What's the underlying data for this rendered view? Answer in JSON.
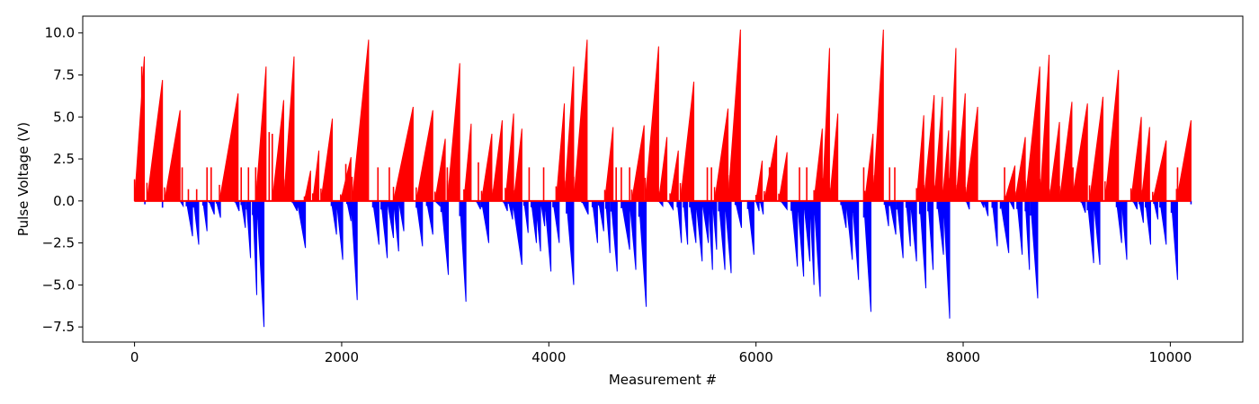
{
  "chart_data": {
    "type": "bar",
    "title": "",
    "xlabel": "Measurement #",
    "ylabel": "Pulse Voltage (V)",
    "xlim": [
      -500,
      10700
    ],
    "ylim": [
      -8.4,
      11.0
    ],
    "x_ticks": [
      0,
      2000,
      4000,
      6000,
      8000,
      10000
    ],
    "x_tick_labels": [
      "0",
      "2000",
      "4000",
      "6000",
      "8000",
      "10000"
    ],
    "y_ticks": [
      -7.5,
      -5.0,
      -2.5,
      0.0,
      2.5,
      5.0,
      7.5,
      10.0
    ],
    "y_tick_labels": [
      "−7.5",
      "−5.0",
      "−2.5",
      "0.0",
      "2.5",
      "5.0",
      "7.5",
      "10.0"
    ],
    "grid": false,
    "series": [
      {
        "color": "#ff0000",
        "description": "positive pulses (sawtooth ramps from 0 to peak)",
        "ramps": [
          [
            0,
            95,
            8.6
          ],
          [
            120,
            270,
            7.2
          ],
          [
            290,
            440,
            5.4
          ],
          [
            820,
            1000,
            6.4
          ],
          [
            1170,
            1270,
            8.0
          ],
          [
            1330,
            1440,
            6.0
          ],
          [
            1440,
            1540,
            8.6
          ],
          [
            1640,
            1700,
            1.8
          ],
          [
            1720,
            1780,
            3.0
          ],
          [
            1800,
            1910,
            4.9
          ],
          [
            1990,
            2090,
            2.6
          ],
          [
            2100,
            2260,
            9.6
          ],
          [
            2500,
            2690,
            5.6
          ],
          [
            2720,
            2880,
            5.4
          ],
          [
            2900,
            3000,
            3.7
          ],
          [
            3020,
            3140,
            8.2
          ],
          [
            3180,
            3250,
            4.6
          ],
          [
            3350,
            3450,
            4.0
          ],
          [
            3450,
            3550,
            4.8
          ],
          [
            3580,
            3660,
            5.2
          ],
          [
            3660,
            3740,
            4.3
          ],
          [
            4070,
            4150,
            5.8
          ],
          [
            4150,
            4240,
            8.0
          ],
          [
            4240,
            4370,
            9.6
          ],
          [
            4540,
            4620,
            4.4
          ],
          [
            4800,
            4920,
            4.5
          ],
          [
            4930,
            5060,
            9.2
          ],
          [
            5060,
            5140,
            3.8
          ],
          [
            5170,
            5250,
            3.0
          ],
          [
            5270,
            5400,
            7.1
          ],
          [
            5600,
            5730,
            5.5
          ],
          [
            5730,
            5850,
            10.2
          ],
          [
            6000,
            6060,
            2.4
          ],
          [
            6080,
            6200,
            3.9
          ],
          [
            6220,
            6300,
            2.9
          ],
          [
            6560,
            6640,
            4.3
          ],
          [
            6640,
            6710,
            9.1
          ],
          [
            6710,
            6790,
            5.2
          ],
          [
            7050,
            7130,
            4.0
          ],
          [
            7130,
            7230,
            10.2
          ],
          [
            7550,
            7620,
            5.1
          ],
          [
            7620,
            7720,
            6.3
          ],
          [
            7720,
            7800,
            6.2
          ],
          [
            7800,
            7860,
            4.2
          ],
          [
            7860,
            7930,
            9.1
          ],
          [
            7930,
            8020,
            6.4
          ],
          [
            8020,
            8140,
            5.6
          ],
          [
            8400,
            8500,
            2.1
          ],
          [
            8500,
            8600,
            3.8
          ],
          [
            8600,
            8740,
            8.0
          ],
          [
            8740,
            8830,
            8.7
          ],
          [
            8830,
            8930,
            4.7
          ],
          [
            8930,
            9050,
            5.9
          ],
          [
            9050,
            9200,
            5.8
          ],
          [
            9220,
            9350,
            6.2
          ],
          [
            9370,
            9500,
            7.8
          ],
          [
            9620,
            9720,
            5.0
          ],
          [
            9720,
            9800,
            4.4
          ],
          [
            9830,
            9960,
            3.6
          ],
          [
            10060,
            10200,
            4.8
          ]
        ],
        "spikes": [
          [
            30,
            2.0
          ],
          [
            70,
            8.0
          ],
          [
            460,
            2.0
          ],
          [
            520,
            0.7
          ],
          [
            600,
            0.7
          ],
          [
            700,
            2.0
          ],
          [
            740,
            2.0
          ],
          [
            1030,
            2.0
          ],
          [
            1100,
            2.0
          ],
          [
            1170,
            2.0
          ],
          [
            1300,
            4.1
          ],
          [
            1330,
            4.0
          ],
          [
            2040,
            2.2
          ],
          [
            2350,
            2.0
          ],
          [
            2460,
            2.0
          ],
          [
            3020,
            2.0
          ],
          [
            3320,
            2.3
          ],
          [
            3810,
            2.0
          ],
          [
            3950,
            2.0
          ],
          [
            4650,
            2.0
          ],
          [
            4700,
            2.0
          ],
          [
            4780,
            2.0
          ],
          [
            5000,
            2.0
          ],
          [
            5530,
            2.0
          ],
          [
            5570,
            2.0
          ],
          [
            6130,
            2.0
          ],
          [
            6420,
            2.0
          ],
          [
            6490,
            2.0
          ],
          [
            7040,
            2.0
          ],
          [
            7290,
            2.0
          ],
          [
            7340,
            2.0
          ],
          [
            8400,
            2.0
          ],
          [
            9030,
            2.0
          ],
          [
            9060,
            2.0
          ],
          [
            10070,
            2.0
          ],
          [
            10180,
            2.0
          ]
        ]
      },
      {
        "color": "#0000ff",
        "description": "negative pulses (ramps from 0 down to trough)",
        "ramps": [
          [
            440,
            470,
            -0.3
          ],
          [
            500,
            560,
            -2.1
          ],
          [
            570,
            620,
            -2.6
          ],
          [
            660,
            700,
            -1.8
          ],
          [
            720,
            770,
            -0.8
          ],
          [
            790,
            830,
            -1.0
          ],
          [
            970,
            1010,
            -0.6
          ],
          [
            1030,
            1070,
            -1.6
          ],
          [
            1080,
            1120,
            -3.4
          ],
          [
            1140,
            1180,
            -5.6
          ],
          [
            1180,
            1250,
            -7.5
          ],
          [
            1520,
            1570,
            -0.6
          ],
          [
            1570,
            1650,
            -2.8
          ],
          [
            1900,
            1950,
            -2.0
          ],
          [
            1950,
            2010,
            -3.5
          ],
          [
            2050,
            2090,
            -1.2
          ],
          [
            2090,
            2150,
            -5.9
          ],
          [
            2300,
            2360,
            -2.6
          ],
          [
            2380,
            2440,
            -3.4
          ],
          [
            2440,
            2500,
            -2.2
          ],
          [
            2500,
            2550,
            -3.0
          ],
          [
            2550,
            2600,
            -1.8
          ],
          [
            2720,
            2780,
            -2.7
          ],
          [
            2820,
            2880,
            -2.0
          ],
          [
            2900,
            2950,
            -0.3
          ],
          [
            2960,
            3030,
            -4.4
          ],
          [
            3140,
            3200,
            -6.0
          ],
          [
            3300,
            3340,
            -0.5
          ],
          [
            3350,
            3420,
            -2.5
          ],
          [
            3560,
            3600,
            -0.6
          ],
          [
            3610,
            3650,
            -1.1
          ],
          [
            3650,
            3740,
            -3.8
          ],
          [
            3760,
            3800,
            -1.9
          ],
          [
            3830,
            3880,
            -2.5
          ],
          [
            3870,
            3920,
            -3.0
          ],
          [
            3920,
            3960,
            -1.5
          ],
          [
            3960,
            4020,
            -4.2
          ],
          [
            4040,
            4100,
            -2.5
          ],
          [
            4170,
            4240,
            -5.0
          ],
          [
            4320,
            4380,
            -0.8
          ],
          [
            4420,
            4470,
            -2.5
          ],
          [
            4480,
            4530,
            -1.8
          ],
          [
            4550,
            4590,
            -3.1
          ],
          [
            4600,
            4660,
            -4.2
          ],
          [
            4700,
            4780,
            -2.9
          ],
          [
            4780,
            4840,
            -4.1
          ],
          [
            4870,
            4940,
            -6.3
          ],
          [
            5060,
            5100,
            -0.3
          ],
          [
            5150,
            5200,
            -0.5
          ],
          [
            5240,
            5280,
            -2.5
          ],
          [
            5300,
            5340,
            -2.6
          ],
          [
            5360,
            5420,
            -2.5
          ],
          [
            5420,
            5480,
            -3.6
          ],
          [
            5480,
            5540,
            -2.5
          ],
          [
            5540,
            5580,
            -4.1
          ],
          [
            5580,
            5620,
            -2.9
          ],
          [
            5640,
            5700,
            -4.1
          ],
          [
            5700,
            5760,
            -4.3
          ],
          [
            5800,
            5860,
            -1.6
          ],
          [
            5920,
            5980,
            -3.2
          ],
          [
            6000,
            6030,
            -0.6
          ],
          [
            6040,
            6070,
            -0.8
          ],
          [
            6240,
            6300,
            -0.5
          ],
          [
            6340,
            6400,
            -3.9
          ],
          [
            6400,
            6460,
            -4.5
          ],
          [
            6460,
            6520,
            -3.6
          ],
          [
            6520,
            6560,
            -5.0
          ],
          [
            6560,
            6620,
            -5.7
          ],
          [
            6820,
            6870,
            -1.6
          ],
          [
            6870,
            6930,
            -3.5
          ],
          [
            6930,
            6990,
            -4.7
          ],
          [
            7040,
            7110,
            -6.6
          ],
          [
            7240,
            7280,
            -1.5
          ],
          [
            7290,
            7350,
            -2.0
          ],
          [
            7360,
            7420,
            -3.4
          ],
          [
            7450,
            7490,
            -2.7
          ],
          [
            7490,
            7550,
            -3.6
          ],
          [
            7580,
            7640,
            -5.2
          ],
          [
            7660,
            7710,
            -4.1
          ],
          [
            7750,
            7810,
            -3.2
          ],
          [
            7810,
            7870,
            -7.0
          ],
          [
            8030,
            8060,
            -0.5
          ],
          [
            8170,
            8200,
            -0.4
          ],
          [
            8200,
            8240,
            -0.9
          ],
          [
            8280,
            8330,
            -2.7
          ],
          [
            8360,
            8440,
            -3.1
          ],
          [
            8450,
            8490,
            -0.5
          ],
          [
            8520,
            8570,
            -3.2
          ],
          [
            8600,
            8640,
            -4.1
          ],
          [
            8650,
            8720,
            -5.8
          ],
          [
            9140,
            9180,
            -0.7
          ],
          [
            9200,
            9260,
            -3.7
          ],
          [
            9260,
            9320,
            -3.8
          ],
          [
            9480,
            9530,
            -2.5
          ],
          [
            9530,
            9580,
            -3.5
          ],
          [
            9640,
            9680,
            -0.5
          ],
          [
            9700,
            9740,
            -1.3
          ],
          [
            9760,
            9810,
            -2.6
          ],
          [
            9840,
            9880,
            -1.1
          ],
          [
            9900,
            9960,
            -2.6
          ],
          [
            10010,
            10070,
            -4.7
          ]
        ],
        "spikes": [
          [
            100,
            -0.2
          ],
          [
            270,
            -0.4
          ],
          [
            10200,
            -0.2
          ]
        ]
      }
    ]
  }
}
